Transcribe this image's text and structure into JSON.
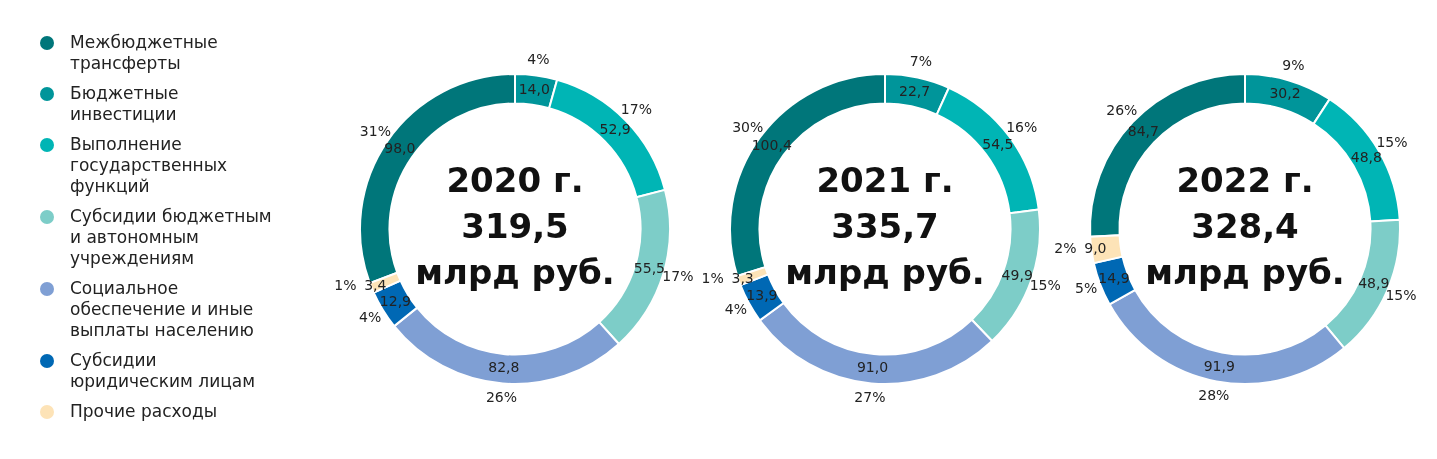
{
  "chart_data": [
    {
      "type": "donut",
      "title": "2020 г.",
      "subtitle": "319,5 млрд руб.",
      "legend": "left",
      "categories": [
        "Межбюджетные трансферты",
        "Бюджетные инвестиции",
        "Выполнение государственных функций",
        "Субсидии бюджетным и автономным учреждениям",
        "Социальное обеспечение и иные выплаты населению",
        "Субсидии юридическим лицам",
        "Прочие расходы"
      ],
      "values": [
        98.0,
        14.0,
        52.9,
        55.5,
        82.8,
        12.9,
        3.4
      ],
      "value_labels": [
        "98,0",
        "14,0",
        "52,9",
        "55,5",
        "82,8",
        "12,9",
        "3,4"
      ],
      "annotations": [
        "31%",
        "4%",
        "17%",
        "17%",
        "26%",
        "4%",
        "1%"
      ],
      "colors": [
        "#00767a",
        "#00959a",
        "#00b5b5",
        "#7dcdc8",
        "#7f9fd4",
        "#0068b4",
        "#fde3b7"
      ]
    },
    {
      "type": "donut",
      "title": "2021 г.",
      "subtitle": "335,7 млрд руб.",
      "categories": [
        null,
        null,
        null,
        null,
        null,
        null,
        null
      ],
      "values": [
        100.4,
        22.7,
        54.5,
        49.9,
        91.0,
        13.9,
        3.3
      ],
      "value_labels": [
        "100,4",
        "22,7",
        "54,5",
        "49,9",
        "91,0",
        "13,9",
        "3,3"
      ],
      "annotations": [
        "30%",
        "7%",
        "16%",
        "15%",
        "27%",
        "4%",
        "1%"
      ],
      "colors": [
        "#00767a",
        "#00959a",
        "#00b5b5",
        "#7dcdc8",
        "#7f9fd4",
        "#0068b4",
        "#fde3b7"
      ]
    },
    {
      "type": "donut",
      "title": "2022 г.",
      "subtitle": "328,4 млрд руб.",
      "categories": [
        null,
        null,
        null,
        null,
        null,
        null,
        null
      ],
      "values": [
        84.7,
        30.2,
        48.8,
        48.9,
        91.9,
        14.9,
        9.0
      ],
      "value_labels": [
        "84,7",
        "30,2",
        "48,8",
        "48,9",
        "91,9",
        "14,9",
        "9,0"
      ],
      "annotations": [
        "26%",
        "9%",
        "15%",
        "15%",
        "28%",
        "5%",
        "2%"
      ],
      "colors": [
        "#00767a",
        "#00959a",
        "#00b5b5",
        "#7dcdc8",
        "#7f9fd4",
        "#0068b4",
        "#fde3b7"
      ]
    }
  ]
}
